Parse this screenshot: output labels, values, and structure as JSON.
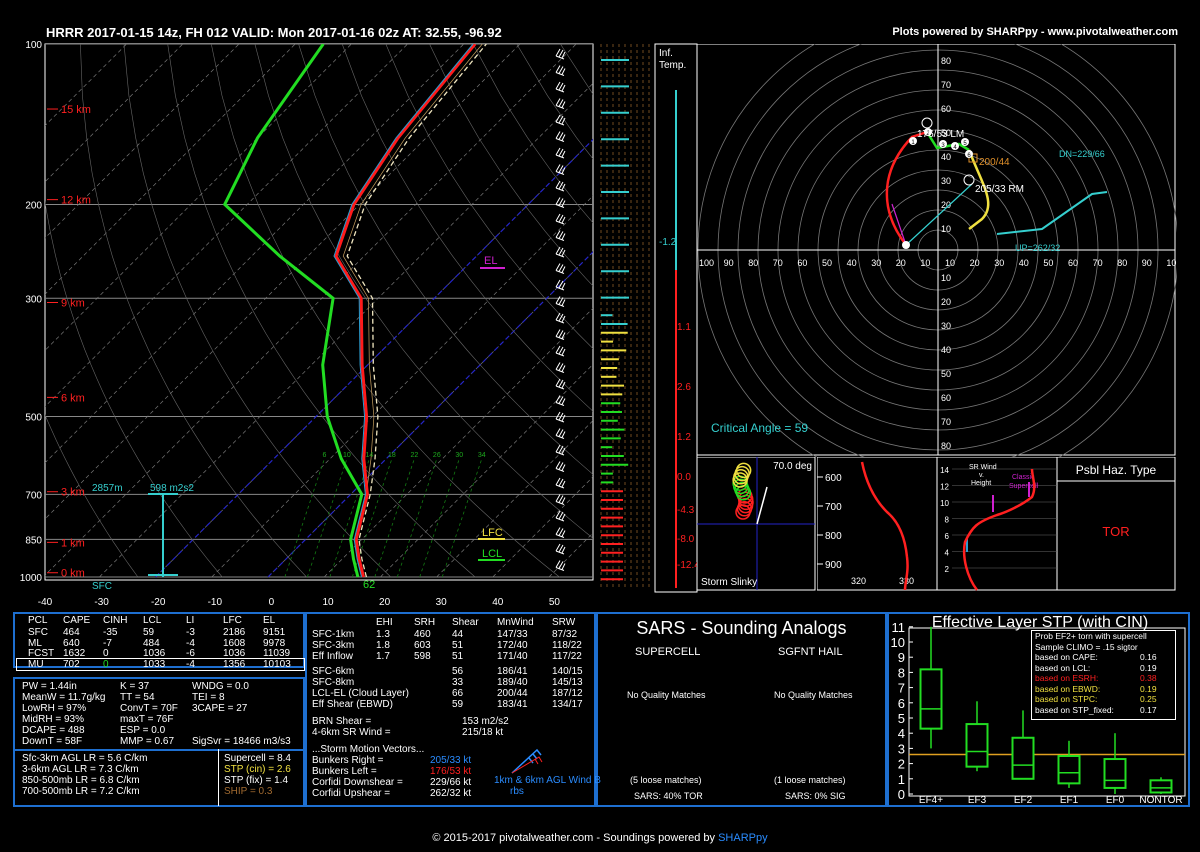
{
  "header": {
    "title": "HRRR 2017-01-15 14z, FH 012    VALID: Mon 2017-01-16 02z    AT: 32.55, -96.92",
    "credit": "Plots powered by SHARPpy - www.pivotalweather.com"
  },
  "footer": {
    "text": "© 2015-2017 pivotalweather.com - Soundings powered by ",
    "sharppy": "SHARPpy"
  },
  "skewt": {
    "pressure_labels": [
      "100",
      "200",
      "300",
      "500",
      "700",
      "850",
      "1000"
    ],
    "temp_labels": [
      "-40",
      "-30",
      "-20",
      "-10",
      "0",
      "10",
      "20",
      "30",
      "40",
      "50"
    ],
    "height_labels": [
      "15 km",
      "12 km",
      "9 km",
      "6 km",
      "3 km",
      "1 km",
      "0 km"
    ],
    "wetbulb_labels": [
      "6",
      "10",
      "14",
      "18",
      "22",
      "26",
      "30",
      "34"
    ],
    "el_label": "EL",
    "lfc_label": "LFC",
    "lcl_label": "LCL",
    "sfc_label": "SFC",
    "inflow_base": "2857m",
    "inflow_srh": "598 m2s2",
    "sfc_temp": "62",
    "colors": {
      "temperature": "#ff1a1a",
      "dewpoint": "#22dd22",
      "virtual": "#ff6060",
      "wetbulb": "#00bfff",
      "parcel": "#f0e6c0"
    }
  },
  "inftemp": {
    "label_inf": "Inf.",
    "label_temp": "Temp.",
    "values": [
      "-1.2",
      "1.1",
      "2.6",
      "1.2",
      "0.0",
      "-4.3",
      "-8.0",
      "-12.4"
    ]
  },
  "hodograph": {
    "ticks_y": [
      "80",
      "70",
      "60",
      "50",
      "40",
      "30",
      "20",
      "10"
    ],
    "ticks_x": [
      "100",
      "90",
      "80",
      "70",
      "60",
      "50",
      "40",
      "30",
      "20",
      "10",
      "10",
      "20",
      "30",
      "40",
      "50",
      "60",
      "70",
      "80",
      "90",
      "10"
    ],
    "ticks_y_lower": [
      "10",
      "20",
      "30",
      "40",
      "50",
      "60",
      "70",
      "80"
    ],
    "lm_label": "176/53 LM",
    "rm_label": "205/33 RM",
    "mean_label": "200/44",
    "dn_label": "DN=229/66",
    "up_label": "UP=262/32",
    "critical_angle": "Critical Angle = 59"
  },
  "slinky": {
    "angle": "70.0 deg",
    "label": "Storm Slinky"
  },
  "theta": {
    "ticks": [
      "600",
      "700",
      "800",
      "900"
    ],
    "x_ticks": [
      "320",
      "330"
    ]
  },
  "srwind": {
    "title": "SR Wind v. Height",
    "heights": [
      "14",
      "12",
      "10",
      "8",
      "6",
      "4",
      "2"
    ],
    "classic": "Classic Supercell"
  },
  "hazard": {
    "title": "Psbl Haz. Type",
    "value": "TOR"
  },
  "parcels": {
    "headers": [
      "PCL",
      "CAPE",
      "CINH",
      "LCL",
      "LI",
      "LFC",
      "EL"
    ],
    "rows": [
      [
        "SFC",
        "464",
        "-35",
        "59",
        "-3",
        "2186",
        "9151"
      ],
      [
        "ML",
        "640",
        "-7",
        "484",
        "-4",
        "1608",
        "9978"
      ],
      [
        "FCST",
        "1632",
        "0",
        "1036",
        "-6",
        "1036",
        "11039"
      ],
      [
        "MU",
        "702",
        "0",
        "1033",
        "-4",
        "1356",
        "10103"
      ]
    ]
  },
  "thermo": {
    "col1": [
      "PW = 1.44in",
      "MeanW = 11.7g/kg",
      "LowRH = 97%",
      "MidRH = 93%",
      "DCAPE = 488",
      "DownT = 58F"
    ],
    "col2": [
      "K = 37",
      "TT = 54",
      "ConvT = 70F",
      "maxT = 76F",
      "ESP = 0.0",
      "MMP = 0.67"
    ],
    "col3": [
      "WNDG = 0.0",
      "TEI = 8",
      "3CAPE = 27",
      "",
      "",
      "SigSvr = 18466 m3/s3"
    ],
    "lapse": [
      "Sfc-3km AGL LR = 5.6 C/km",
      "3-6km AGL LR = 7.3 C/km",
      "850-500mb LR = 6.8 C/km",
      "700-500mb LR = 7.2 C/km"
    ],
    "indices": [
      "Supercell = 8.4",
      "STP (cin) = 2.6",
      "STP (fix) = 1.4",
      "SHIP = 0.3"
    ]
  },
  "kinematics": {
    "headers": [
      "EHI",
      "SRH",
      "Shear",
      "MnWind",
      "SRW"
    ],
    "rows": [
      [
        "SFC-1km",
        "1.3",
        "460",
        "44",
        "147/33",
        "87/32"
      ],
      [
        "SFC-3km",
        "1.8",
        "603",
        "51",
        "172/40",
        "118/22"
      ],
      [
        "Eff Inflow",
        "1.7",
        "598",
        "51",
        "171/40",
        "117/22"
      ],
      [
        "SFC-6km",
        "",
        "",
        "56",
        "186/41",
        "140/15"
      ],
      [
        "SFC-8km",
        "",
        "",
        "33",
        "189/40",
        "145/13"
      ],
      [
        "LCL-EL (Cloud Layer)",
        "",
        "",
        "66",
        "200/44",
        "187/12"
      ],
      [
        "Eff Shear (EBWD)",
        "",
        "",
        "59",
        "183/41",
        "134/17"
      ]
    ],
    "brn": [
      "BRN Shear =",
      "153 m2/s2"
    ],
    "sr46": [
      "4-6km SR Wind =",
      "215/18 kt"
    ],
    "motion_title": "...Storm Motion Vectors...",
    "motion": [
      [
        "Bunkers Right =",
        "205/33 kt"
      ],
      [
        "Bunkers Left =",
        "176/53 kt"
      ],
      [
        "Corfidi Downshear =",
        "229/66 kt"
      ],
      [
        "Corfidi Upshear =",
        "262/32 kt"
      ]
    ],
    "barb_label": "1km & 6km AGL Wind Barbs"
  },
  "sars": {
    "title": "SARS - Sounding Analogs",
    "supercell": "SUPERCELL",
    "hail": "SGFNT HAIL",
    "no_match": "No Quality Matches",
    "sc_loose": "(5 loose matches)",
    "hail_loose": "(1 loose matches)",
    "sc_result": "SARS: 40% TOR",
    "hail_result": "SARS: 0% SIG"
  },
  "stp": {
    "title": "Effective Layer STP (with CIN)",
    "prob_title": "Prob EF2+ torn with supercell",
    "prob_sub": "Sample CLIMO = .15 sigtor",
    "items": [
      [
        "based on CAPE:",
        "0.16"
      ],
      [
        "based on LCL:",
        "0.19"
      ],
      [
        "based on ESRH:",
        "0.38"
      ],
      [
        "based on EBWD:",
        "0.19"
      ],
      [
        "based on STPC:",
        "0.25"
      ],
      [
        "based on STP_fixed:",
        "0.17"
      ]
    ],
    "y_ticks": [
      "0",
      "1",
      "2",
      "3",
      "4",
      "5",
      "6",
      "7",
      "8",
      "9",
      "10",
      "11"
    ],
    "categories": [
      "EF4+",
      "EF3",
      "EF2",
      "EF1",
      "EF0",
      "NONTOR"
    ]
  },
  "chart_data": [
    {
      "type": "line",
      "chart": "skew-t",
      "ylim": [
        1000,
        100
      ],
      "xlim": [
        -40,
        50
      ],
      "series": [
        {
          "name": "temperature",
          "values": [
            [
              1000,
              17
            ],
            [
              925,
              13
            ],
            [
              850,
              9
            ],
            [
              700,
              3
            ],
            [
              600,
              -4
            ],
            [
              500,
              -11
            ],
            [
              400,
              -21
            ],
            [
              300,
              -33
            ],
            [
              250,
              -45
            ],
            [
              200,
              -51
            ],
            [
              150,
              -55
            ],
            [
              100,
              -58
            ]
          ]
        },
        {
          "name": "dewpoint",
          "values": [
            [
              1000,
              16
            ],
            [
              925,
              12
            ],
            [
              850,
              8
            ],
            [
              700,
              2
            ],
            [
              600,
              -8
            ],
            [
              500,
              -18
            ],
            [
              400,
              -28
            ],
            [
              300,
              -38
            ],
            [
              250,
              -55
            ],
            [
              200,
              -74
            ],
            [
              150,
              -80
            ],
            [
              100,
              -85
            ]
          ]
        }
      ]
    },
    {
      "type": "box",
      "chart": "stp",
      "categories": [
        "EF4+",
        "EF3",
        "EF2",
        "EF1",
        "EF0",
        "NONTOR"
      ],
      "series": [
        {
          "name": "whisker_low",
          "values": [
            3.0,
            1.5,
            1.1,
            0.4,
            0.0,
            0.0
          ]
        },
        {
          "name": "q1",
          "values": [
            4.3,
            1.8,
            1.0,
            0.7,
            0.4,
            0.1
          ]
        },
        {
          "name": "median",
          "values": [
            5.6,
            2.8,
            1.9,
            1.4,
            0.9,
            0.4
          ]
        },
        {
          "name": "q3",
          "values": [
            8.2,
            4.6,
            3.7,
            2.5,
            2.3,
            0.9
          ]
        },
        {
          "name": "whisker_high",
          "values": [
            11.0,
            6.1,
            5.5,
            3.5,
            4.0,
            1.1
          ]
        },
        {
          "name": "stp_value",
          "values": [
            2.6
          ]
        }
      ]
    }
  ]
}
